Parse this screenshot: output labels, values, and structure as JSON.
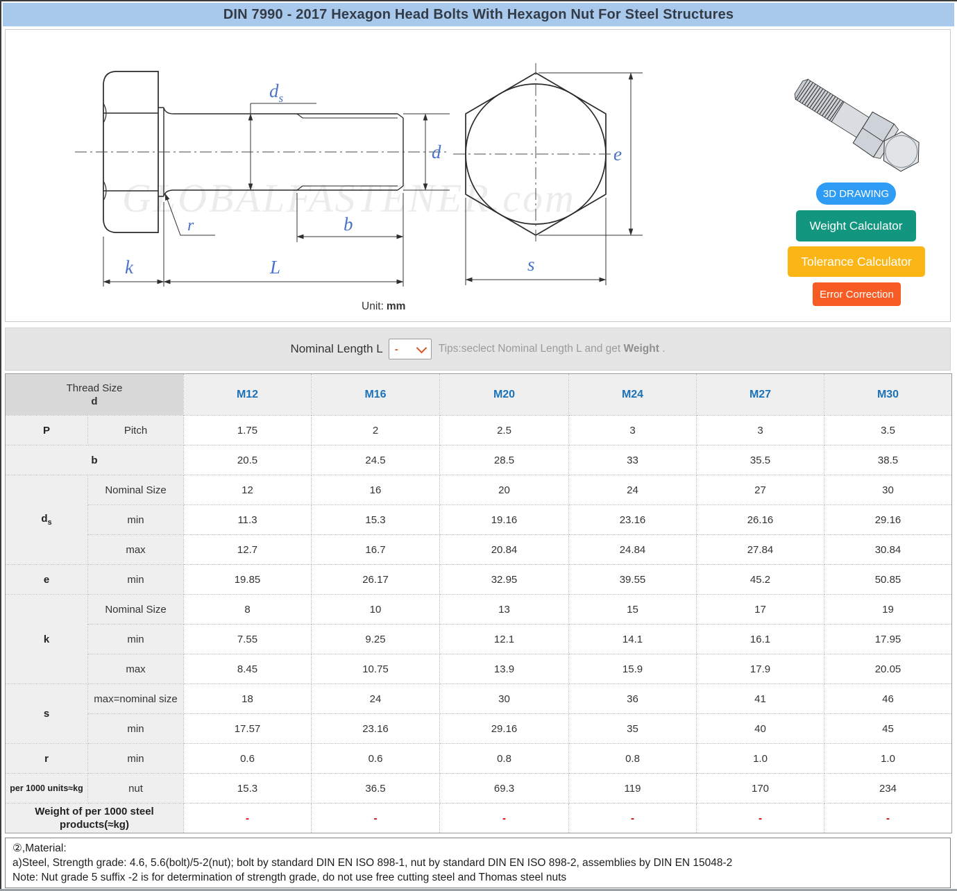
{
  "title": "DIN 7990 - 2017 Hexagon Head Bolts With Hexagon Nut For Steel Structures",
  "diagram": {
    "watermark": "GLOBALFASTENER.com",
    "unit_label": "Unit:",
    "unit_value": "mm",
    "labels": {
      "ds_main": "d",
      "ds_sub": "s",
      "d": "d",
      "b": "b",
      "k": "k",
      "L": "L",
      "r": "r",
      "e": "e",
      "s": "s"
    }
  },
  "actions": {
    "btn_3d": "3D DRAWING",
    "btn_weight": "Weight Calculator",
    "btn_tolerance": "Tolerance Calculator",
    "btn_error": "Error Correction"
  },
  "selector": {
    "label": "Nominal Length L",
    "value": "-",
    "tips_prefix": "Tips:seclect Nominal Length L and get ",
    "tips_bold": "Weight",
    "tips_suffix": " ."
  },
  "table": {
    "header": {
      "col1_line1": "Thread Size",
      "col1_line2": "d",
      "columns": [
        "M12",
        "M16",
        "M20",
        "M24",
        "M27",
        "M30"
      ]
    },
    "rows": [
      {
        "group_start": true,
        "label": {
          "text": "P"
        },
        "sub": {
          "text": "Pitch"
        },
        "values": [
          "1.75",
          "2",
          "2.5",
          "3",
          "3",
          "3.5"
        ]
      },
      {
        "group_start": true,
        "label": {
          "text": "b",
          "colspan": 2
        },
        "values": [
          "20.5",
          "24.5",
          "28.5",
          "33",
          "35.5",
          "38.5"
        ]
      },
      {
        "group_start": true,
        "label": {
          "text": "d",
          "subscript": "s",
          "rowspan": 3
        },
        "sub": {
          "text": "Nominal Size"
        },
        "values": [
          "12",
          "16",
          "20",
          "24",
          "27",
          "30"
        ]
      },
      {
        "sub": {
          "text": "min"
        },
        "values": [
          "11.3",
          "15.3",
          "19.16",
          "23.16",
          "26.16",
          "29.16"
        ]
      },
      {
        "sub": {
          "text": "max"
        },
        "values": [
          "12.7",
          "16.7",
          "20.84",
          "24.84",
          "27.84",
          "30.84"
        ]
      },
      {
        "group_start": true,
        "label": {
          "text": "e"
        },
        "sub": {
          "text": "min"
        },
        "values": [
          "19.85",
          "26.17",
          "32.95",
          "39.55",
          "45.2",
          "50.85"
        ]
      },
      {
        "group_start": true,
        "label": {
          "text": "k",
          "rowspan": 3
        },
        "sub": {
          "text": "Nominal Size"
        },
        "values": [
          "8",
          "10",
          "13",
          "15",
          "17",
          "19"
        ]
      },
      {
        "sub": {
          "text": "min"
        },
        "values": [
          "7.55",
          "9.25",
          "12.1",
          "14.1",
          "16.1",
          "17.95"
        ]
      },
      {
        "sub": {
          "text": "max"
        },
        "values": [
          "8.45",
          "10.75",
          "13.9",
          "15.9",
          "17.9",
          "20.05"
        ]
      },
      {
        "group_start": true,
        "label": {
          "text": "s",
          "rowspan": 2
        },
        "sub": {
          "text": "max=nominal size"
        },
        "values": [
          "18",
          "24",
          "30",
          "36",
          "41",
          "46"
        ]
      },
      {
        "sub": {
          "text": "min"
        },
        "values": [
          "17.57",
          "23.16",
          "29.16",
          "35",
          "40",
          "45"
        ]
      },
      {
        "group_start": true,
        "label": {
          "text": "r"
        },
        "sub": {
          "text": "min"
        },
        "values": [
          "0.6",
          "0.6",
          "0.8",
          "0.8",
          "1.0",
          "1.0"
        ]
      },
      {
        "group_start": true,
        "label": {
          "text": "per 1000 units≈kg",
          "kind": "small"
        },
        "sub": {
          "text": "nut"
        },
        "values": [
          "15.3",
          "36.5",
          "69.3",
          "119",
          "170",
          "234"
        ]
      },
      {
        "group_start": true,
        "label": {
          "text": "Weight of per 1000 steel products(≈kg)",
          "kind": "weight",
          "colspan": 2
        },
        "red": true,
        "values": [
          "-",
          "-",
          "-",
          "-",
          "-",
          "-"
        ]
      }
    ]
  },
  "notes": [
    "②,Material:",
    "a)Steel, Strength grade: 4.6, 5.6(bolt)/5-2(nut); bolt by standard DIN EN ISO 898-1, nut by standard DIN EN ISO 898-2, assemblies by DIN EN 15048-2",
    "Note: Nut grade 5 suffix -2 is for determination of strength grade, do not use free cutting steel and Thomas steel nuts"
  ],
  "colors": {
    "title_bar_bg": "#a9c9ec",
    "column_header_text": "#1c72b8",
    "dimension_label_blue": "#4a72c8",
    "dash_red": "#cc0000",
    "btn_3d": "#2e9cf5",
    "btn_weight": "#12967f",
    "btn_tolerance": "#fbb616",
    "btn_error": "#f85c25",
    "select_accent": "#d9541f"
  }
}
